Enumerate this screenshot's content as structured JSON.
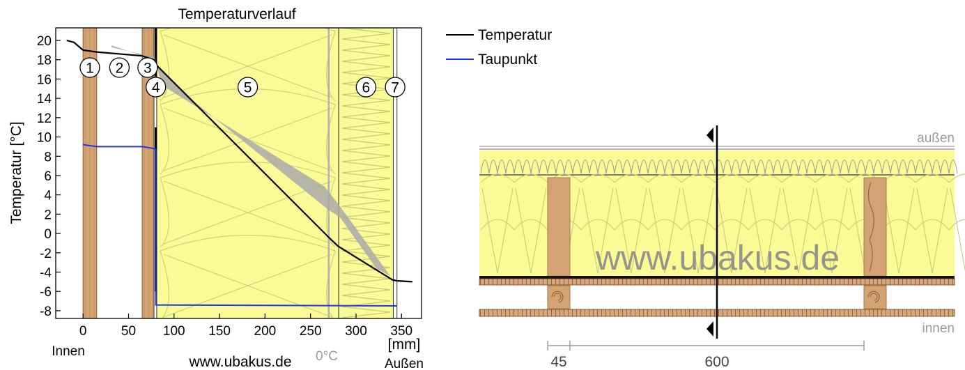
{
  "chart_data": {
    "type": "line",
    "title": "Temperaturverlauf",
    "ylabel": "Temperatur [°C]",
    "x_unit": "[mm]",
    "x_ticks": [
      "0",
      "50",
      "100",
      "150",
      "200",
      "250",
      "300",
      "350"
    ],
    "y_ticks": [
      "20",
      "18",
      "16",
      "14",
      "12",
      "10",
      "8",
      "6",
      "4",
      "2",
      "0",
      "-2",
      "-4",
      "-6",
      "-8"
    ],
    "xlim": [
      -30,
      372
    ],
    "ylim": [
      -8.8,
      21.3
    ],
    "grid": false,
    "legend_position": "top-right",
    "series": [
      {
        "name": "Temperatur",
        "color": "#000000",
        "x": [
          -18,
          -10,
          0,
          15,
          65,
          78,
          80,
          270,
          280,
          340,
          345,
          362
        ],
        "y": [
          20.0,
          19.8,
          19.0,
          18.8,
          18.4,
          18.0,
          17.5,
          -0.4,
          -1.3,
          -4.8,
          -4.9,
          -5.0
        ]
      },
      {
        "name": "Taupunkt",
        "color": "#2233ee",
        "x": [
          0,
          15,
          65,
          78,
          80,
          80,
          345
        ],
        "y": [
          9.2,
          9.0,
          9.0,
          8.8,
          8.7,
          -7.4,
          -7.5
        ]
      }
    ],
    "zero_line_label": "0°C",
    "layers": [
      {
        "number": "1",
        "x_start": 0,
        "x_end": 15,
        "material": "wood"
      },
      {
        "number": "2",
        "x_start": 15,
        "x_end": 65,
        "material": "air"
      },
      {
        "number": "3",
        "x_start": 65,
        "x_end": 78,
        "material": "wood"
      },
      {
        "number": "4",
        "x_start": 78,
        "x_end": 81,
        "material": "membrane"
      },
      {
        "number": "5",
        "x_start": 81,
        "x_end": 281,
        "material": "insulation"
      },
      {
        "number": "6",
        "x_start": 281,
        "x_end": 341,
        "material": "insulation-board"
      },
      {
        "number": "7",
        "x_start": 341,
        "x_end": 345,
        "material": "membrane"
      }
    ],
    "side_labels": {
      "inside": "Innen",
      "outside": "Außen"
    },
    "watermark": "www.ubakus.de"
  },
  "cross_section": {
    "label_outside": "außen",
    "label_inside": "innen",
    "watermark": "www.ubakus.de",
    "dimensions": [
      "45",
      "600"
    ]
  },
  "colors": {
    "wood": "#d4a373",
    "insulation": "#fafa96",
    "taupunkt": "#2233ee",
    "zero_line": "#b0b0b0"
  }
}
